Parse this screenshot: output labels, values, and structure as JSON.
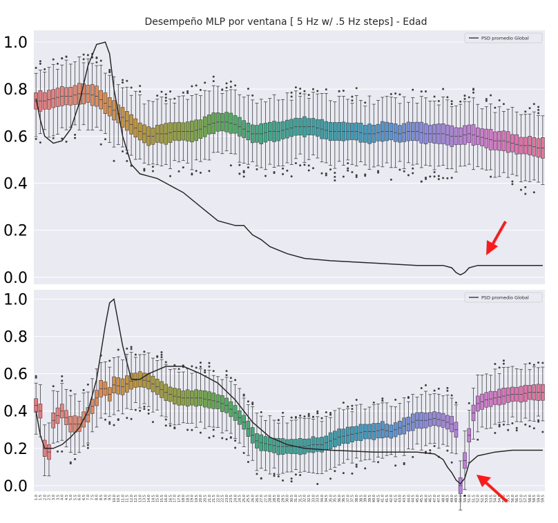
{
  "chart_data": [
    {
      "type": "box",
      "title": "Desempeño MLP por ventana [ 5 Hz w/ .5 Hz steps]  - Edad",
      "xlabel": "",
      "ylabel": "",
      "ylim": [
        -0.03,
        1.05
      ],
      "yticks": [
        "0.0",
        "0.2",
        "0.4",
        "0.6",
        "0.8",
        "1.0"
      ],
      "grid": true,
      "legend": {
        "position": "top-right",
        "entries": [
          "PSD promedio Global"
        ]
      },
      "annotation": "red arrow pointing at the dip of the PSD line near 50 Hz",
      "categories_range": {
        "start": 1.0,
        "end": 59.5,
        "step": 0.5
      },
      "box_median_keypoints": [
        [
          1.0,
          0.75
        ],
        [
          2.0,
          0.75
        ],
        [
          3.0,
          0.76
        ],
        [
          4.0,
          0.77
        ],
        [
          5.0,
          0.77
        ],
        [
          6.0,
          0.78
        ],
        [
          7.0,
          0.78
        ],
        [
          8.0,
          0.77
        ],
        [
          9.0,
          0.74
        ],
        [
          10.0,
          0.71
        ],
        [
          11.0,
          0.68
        ],
        [
          12.0,
          0.65
        ],
        [
          13.0,
          0.62
        ],
        [
          14.0,
          0.6
        ],
        [
          14.5,
          0.6
        ],
        [
          15.0,
          0.61
        ],
        [
          16.0,
          0.61
        ],
        [
          17.0,
          0.62
        ],
        [
          18.0,
          0.62
        ],
        [
          19.0,
          0.62
        ],
        [
          20.0,
          0.63
        ],
        [
          21.0,
          0.65
        ],
        [
          22.0,
          0.66
        ],
        [
          23.0,
          0.66
        ],
        [
          24.0,
          0.65
        ],
        [
          25.0,
          0.63
        ],
        [
          26.0,
          0.61
        ],
        [
          27.0,
          0.61
        ],
        [
          28.0,
          0.62
        ],
        [
          29.0,
          0.62
        ],
        [
          30.0,
          0.63
        ],
        [
          31.0,
          0.64
        ],
        [
          32.0,
          0.64
        ],
        [
          33.0,
          0.64
        ],
        [
          34.0,
          0.63
        ],
        [
          35.0,
          0.62
        ],
        [
          36.0,
          0.62
        ],
        [
          37.0,
          0.62
        ],
        [
          38.0,
          0.62
        ],
        [
          39.0,
          0.61
        ],
        [
          40.0,
          0.61
        ],
        [
          41.0,
          0.62
        ],
        [
          42.0,
          0.62
        ],
        [
          43.0,
          0.61
        ],
        [
          44.0,
          0.62
        ],
        [
          45.0,
          0.62
        ],
        [
          46.0,
          0.61
        ],
        [
          47.0,
          0.61
        ],
        [
          48.0,
          0.61
        ],
        [
          49.0,
          0.6
        ],
        [
          50.0,
          0.6
        ],
        [
          51.0,
          0.61
        ],
        [
          52.0,
          0.6
        ],
        [
          53.0,
          0.59
        ],
        [
          54.0,
          0.58
        ],
        [
          55.0,
          0.58
        ],
        [
          56.0,
          0.57
        ],
        [
          57.0,
          0.56
        ],
        [
          58.0,
          0.56
        ],
        [
          59.0,
          0.55
        ],
        [
          59.5,
          0.55
        ]
      ],
      "psd_line": {
        "name": "PSD promedio Global",
        "x": [
          1.0,
          1.5,
          2.0,
          3.0,
          4.0,
          5.0,
          6.0,
          7.0,
          8.0,
          9.0,
          9.5,
          10.0,
          11.0,
          12.0,
          13.0,
          14.0,
          15.0,
          16.0,
          18.0,
          20.0,
          22.0,
          24.0,
          25.0,
          25.5,
          26.0,
          27.0,
          28.0,
          30.0,
          32.0,
          35.0,
          40.0,
          45.0,
          47.0,
          48.0,
          49.0,
          49.5,
          50.0,
          50.5,
          51.0,
          52.0,
          55.0,
          59.5
        ],
        "y": [
          0.76,
          0.67,
          0.6,
          0.57,
          0.58,
          0.63,
          0.74,
          0.9,
          0.99,
          1.0,
          0.95,
          0.8,
          0.6,
          0.48,
          0.44,
          0.43,
          0.42,
          0.4,
          0.36,
          0.3,
          0.24,
          0.22,
          0.22,
          0.2,
          0.18,
          0.16,
          0.13,
          0.1,
          0.08,
          0.07,
          0.06,
          0.05,
          0.05,
          0.05,
          0.04,
          0.02,
          0.01,
          0.02,
          0.04,
          0.05,
          0.05,
          0.05
        ]
      }
    },
    {
      "type": "box",
      "title": "",
      "xlabel": "",
      "ylabel": "",
      "ylim": [
        -0.03,
        1.05
      ],
      "yticks": [
        "0.0",
        "0.2",
        "0.4",
        "0.6",
        "0.8",
        "1.0"
      ],
      "grid": true,
      "legend": {
        "position": "top-right",
        "entries": [
          "PSD promedio Global"
        ]
      },
      "annotation": "red arrow pointing at the dip of the PSD line near 50 Hz",
      "x_tick_labels": [
        "1.0",
        "1.5",
        "2.0",
        "2.5",
        "3.0",
        "3.5",
        "4.0",
        "4.5",
        "5.0",
        "5.5",
        "6.0",
        "6.5",
        "7.0",
        "7.5",
        "8.0",
        "8.5",
        "9.0",
        "9.5",
        "10.0",
        "10.5",
        "11.0",
        "11.5",
        "12.0",
        "12.5",
        "13.0",
        "13.5",
        "14.0",
        "14.5",
        "15.0",
        "15.5",
        "16.0",
        "16.5",
        "17.0",
        "17.5",
        "18.0",
        "18.5",
        "19.0",
        "19.5",
        "20.0",
        "20.5",
        "21.0",
        "21.5",
        "22.0",
        "22.5",
        "23.0",
        "23.5",
        "24.0",
        "24.5",
        "25.0",
        "25.5",
        "26.0",
        "26.5",
        "27.0",
        "27.5",
        "28.0",
        "28.5",
        "29.0",
        "29.5",
        "30.0",
        "30.5",
        "31.0",
        "31.5",
        "32.0",
        "32.5",
        "33.0",
        "33.5",
        "34.0",
        "34.5",
        "35.0",
        "35.5",
        "36.0",
        "36.5",
        "37.0",
        "37.5",
        "38.0",
        "38.5",
        "39.0",
        "39.5",
        "40.0",
        "40.5",
        "41.0",
        "41.5",
        "42.0",
        "42.5",
        "43.0",
        "43.5",
        "44.0",
        "44.5",
        "45.0",
        "45.5",
        "46.0",
        "46.5",
        "47.0",
        "47.5",
        "48.0",
        "48.5",
        "49.0",
        "49.5",
        "50.0",
        "50.5",
        "51.0",
        "51.5",
        "52.0",
        "52.5",
        "53.0",
        "53.5",
        "54.0",
        "54.5",
        "55.0",
        "55.5",
        "56.0",
        "56.5",
        "57.0",
        "57.5",
        "58.0",
        "58.5",
        "59.0",
        "59.5"
      ],
      "box_median_keypoints": [
        [
          1.0,
          0.43
        ],
        [
          1.5,
          0.4
        ],
        [
          2.0,
          0.2
        ],
        [
          2.5,
          0.18
        ],
        [
          3.0,
          0.35
        ],
        [
          4.0,
          0.4
        ],
        [
          5.0,
          0.33
        ],
        [
          6.0,
          0.33
        ],
        [
          7.0,
          0.38
        ],
        [
          8.0,
          0.47
        ],
        [
          8.5,
          0.52
        ],
        [
          9.0,
          0.52
        ],
        [
          9.5,
          0.49
        ],
        [
          10.0,
          0.54
        ],
        [
          11.0,
          0.53
        ],
        [
          12.0,
          0.56
        ],
        [
          13.0,
          0.57
        ],
        [
          14.0,
          0.56
        ],
        [
          15.0,
          0.53
        ],
        [
          16.0,
          0.5
        ],
        [
          17.0,
          0.48
        ],
        [
          18.0,
          0.47
        ],
        [
          19.0,
          0.47
        ],
        [
          20.0,
          0.47
        ],
        [
          21.0,
          0.46
        ],
        [
          22.0,
          0.45
        ],
        [
          23.0,
          0.43
        ],
        [
          24.0,
          0.39
        ],
        [
          25.0,
          0.34
        ],
        [
          26.0,
          0.27
        ],
        [
          26.5,
          0.24
        ],
        [
          27.0,
          0.23
        ],
        [
          28.0,
          0.22
        ],
        [
          29.0,
          0.21
        ],
        [
          30.0,
          0.21
        ],
        [
          31.0,
          0.21
        ],
        [
          32.0,
          0.21
        ],
        [
          33.0,
          0.22
        ],
        [
          34.0,
          0.22
        ],
        [
          35.0,
          0.24
        ],
        [
          36.0,
          0.26
        ],
        [
          37.0,
          0.27
        ],
        [
          38.0,
          0.28
        ],
        [
          39.0,
          0.29
        ],
        [
          40.0,
          0.29
        ],
        [
          41.0,
          0.3
        ],
        [
          42.0,
          0.29
        ],
        [
          43.0,
          0.31
        ],
        [
          44.0,
          0.33
        ],
        [
          45.0,
          0.35
        ],
        [
          46.0,
          0.35
        ],
        [
          47.0,
          0.36
        ],
        [
          48.0,
          0.35
        ],
        [
          49.0,
          0.33
        ],
        [
          49.5,
          0.3
        ],
        [
          50.0,
          0.0
        ],
        [
          51.0,
          0.27
        ],
        [
          51.5,
          0.39
        ],
        [
          52.0,
          0.44
        ],
        [
          53.0,
          0.46
        ],
        [
          54.0,
          0.47
        ],
        [
          55.0,
          0.48
        ],
        [
          56.0,
          0.49
        ],
        [
          57.0,
          0.49
        ],
        [
          58.0,
          0.5
        ],
        [
          59.0,
          0.5
        ],
        [
          59.5,
          0.5
        ]
      ],
      "psd_line": {
        "name": "PSD promedio Global",
        "x": [
          1.0,
          1.5,
          2.0,
          3.0,
          4.0,
          5.0,
          6.0,
          7.0,
          8.0,
          9.0,
          9.5,
          10.0,
          11.0,
          12.0,
          13.0,
          14.0,
          15.0,
          16.0,
          17.0,
          18.0,
          20.0,
          22.0,
          24.0,
          26.0,
          28.0,
          30.0,
          32.0,
          35.0,
          40.0,
          45.0,
          47.0,
          48.0,
          48.5,
          49.0,
          49.5,
          50.0,
          50.5,
          51.0,
          52.0,
          54.0,
          56.0,
          58.0,
          59.5
        ],
        "y": [
          0.4,
          0.27,
          0.2,
          0.2,
          0.22,
          0.26,
          0.31,
          0.4,
          0.57,
          0.86,
          0.98,
          1.0,
          0.75,
          0.57,
          0.57,
          0.6,
          0.62,
          0.64,
          0.64,
          0.64,
          0.6,
          0.55,
          0.46,
          0.34,
          0.26,
          0.22,
          0.2,
          0.19,
          0.18,
          0.18,
          0.17,
          0.14,
          0.1,
          0.07,
          0.03,
          0.01,
          0.04,
          0.12,
          0.16,
          0.18,
          0.19,
          0.19,
          0.19
        ]
      }
    }
  ]
}
